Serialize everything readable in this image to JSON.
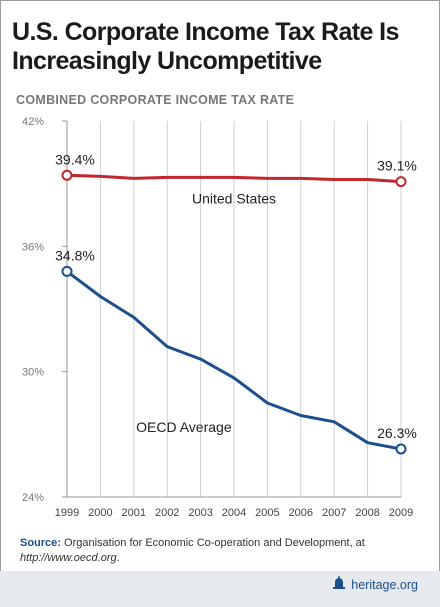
{
  "title": {
    "line1": "U.S. Corporate Income Tax Rate Is",
    "line2": "Increasingly Uncompetitive"
  },
  "chart_data": {
    "type": "line",
    "title": "COMBINED CORPORATE INCOME TAX RATE",
    "x": [
      "1999",
      "2000",
      "2001",
      "2002",
      "2003",
      "2004",
      "2005",
      "2006",
      "2007",
      "2008",
      "2009"
    ],
    "ylim": [
      24,
      42
    ],
    "yticks": [
      42,
      36,
      30,
      24
    ],
    "ytick_labels": [
      "42%",
      "36%",
      "30%",
      "24%"
    ],
    "grid": "vertical",
    "series": [
      {
        "name": "United States",
        "color": "#c1272d",
        "values": [
          39.4,
          39.35,
          39.25,
          39.3,
          39.3,
          39.3,
          39.25,
          39.25,
          39.2,
          39.2,
          39.1
        ],
        "start_label": "39.4%",
        "end_label": "39.1%"
      },
      {
        "name": "OECD Average",
        "color": "#1c4f8c",
        "values": [
          34.8,
          33.6,
          32.6,
          31.2,
          30.6,
          29.7,
          28.5,
          27.9,
          27.6,
          26.6,
          26.3
        ],
        "start_label": "34.8%",
        "end_label": "26.3%"
      }
    ]
  },
  "source": {
    "label": "Source:",
    "text": " Organisation for Economic Co-operation and Development, at",
    "url": "http://www.oecd.org",
    "end": "."
  },
  "brand": {
    "text": "heritage.org",
    "icon": "bell-icon"
  }
}
